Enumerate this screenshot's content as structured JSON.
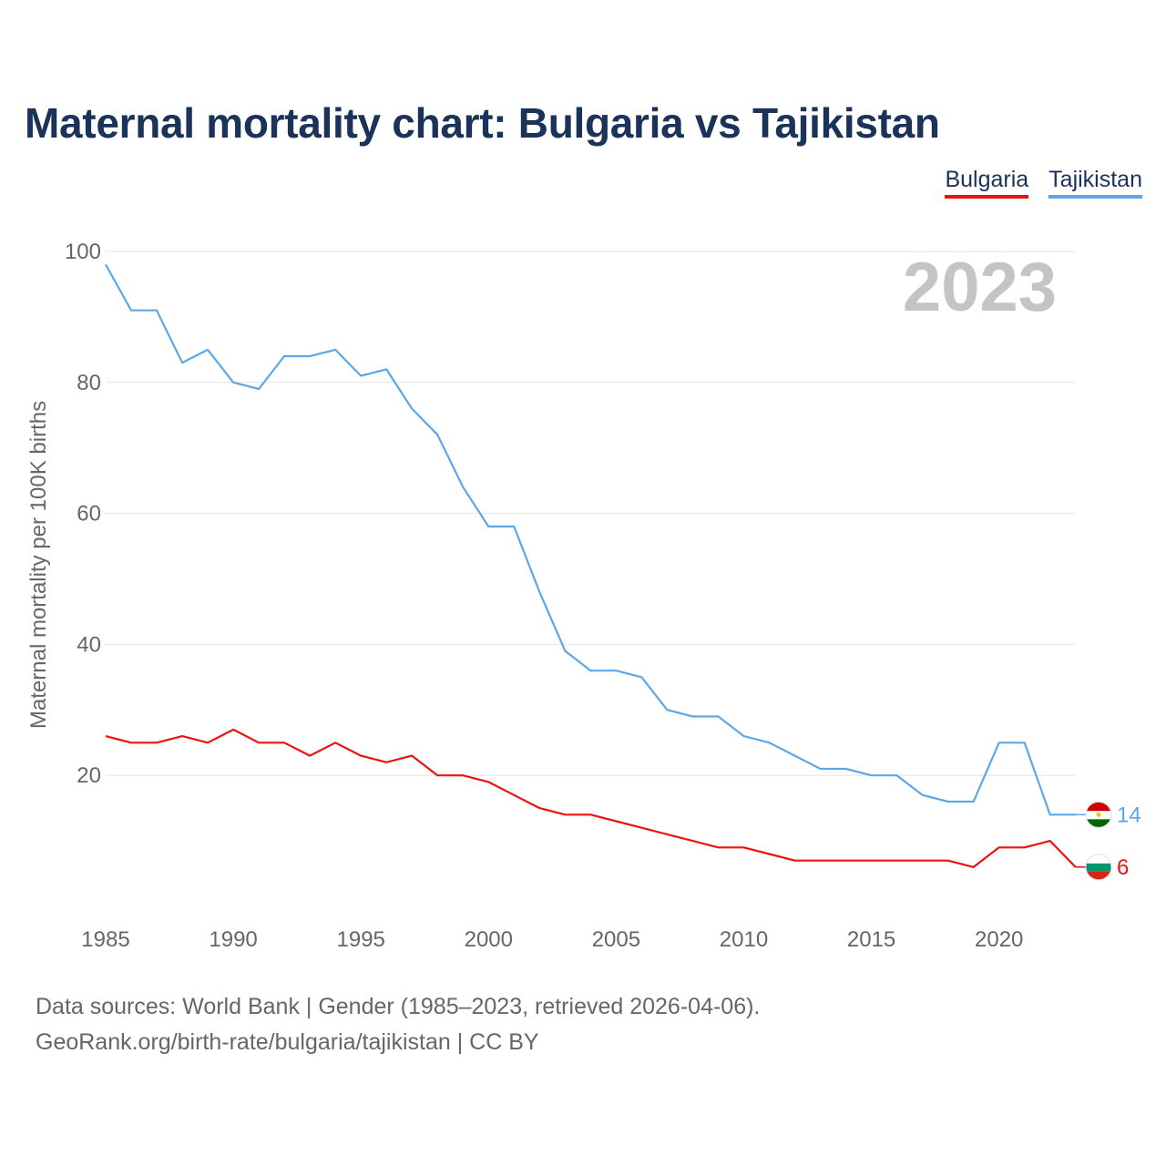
{
  "title": "Maternal mortality chart: Bulgaria vs Tajikistan",
  "legend": {
    "bulgaria": "Bulgaria",
    "tajikistan": "Tajikistan"
  },
  "source": {
    "line1": "Data sources: World Bank | Gender (1985–2023, retrieved 2026-04-06).",
    "line2": "GeoRank.org/birth-rate/bulgaria/tajikistan | CC BY"
  },
  "colors": {
    "bulgaria": "#ee1111",
    "tajikistan": "#5ba7e8",
    "grid": "#e6e6e6",
    "year": "#c4c4c4"
  },
  "chart_data": {
    "type": "line",
    "title": "Maternal mortality chart: Bulgaria vs Tajikistan",
    "xlabel": "",
    "ylabel": "Maternal mortality per 100K births",
    "xlim": [
      1985,
      2023
    ],
    "ylim": [
      0,
      100
    ],
    "xticks": [
      1985,
      1990,
      1995,
      2000,
      2005,
      2010,
      2015,
      2020
    ],
    "yticks": [
      20,
      40,
      60,
      80,
      100
    ],
    "grid": true,
    "year_label": "2023",
    "x": [
      1985,
      1986,
      1987,
      1988,
      1989,
      1990,
      1991,
      1992,
      1993,
      1994,
      1995,
      1996,
      1997,
      1998,
      1999,
      2000,
      2001,
      2002,
      2003,
      2004,
      2005,
      2006,
      2007,
      2008,
      2009,
      2010,
      2011,
      2012,
      2013,
      2014,
      2015,
      2016,
      2017,
      2018,
      2019,
      2020,
      2021,
      2022,
      2023
    ],
    "series": [
      {
        "name": "Bulgaria",
        "key": "bulgaria",
        "end_label": "6",
        "values": [
          26,
          25,
          25,
          26,
          25,
          27,
          25,
          25,
          23,
          25,
          23,
          22,
          23,
          20,
          20,
          19,
          17,
          15,
          14,
          14,
          13,
          12,
          11,
          10,
          9,
          9,
          8,
          7,
          7,
          7,
          7,
          7,
          7,
          7,
          6,
          9,
          9,
          10,
          6
        ]
      },
      {
        "name": "Tajikistan",
        "key": "tajikistan",
        "end_label": "14",
        "values": [
          98,
          91,
          91,
          83,
          85,
          80,
          79,
          84,
          84,
          85,
          81,
          82,
          76,
          72,
          64,
          58,
          58,
          48,
          39,
          36,
          36,
          35,
          30,
          29,
          29,
          26,
          25,
          23,
          21,
          21,
          20,
          20,
          17,
          16,
          16,
          25,
          25,
          14,
          14
        ]
      }
    ]
  }
}
